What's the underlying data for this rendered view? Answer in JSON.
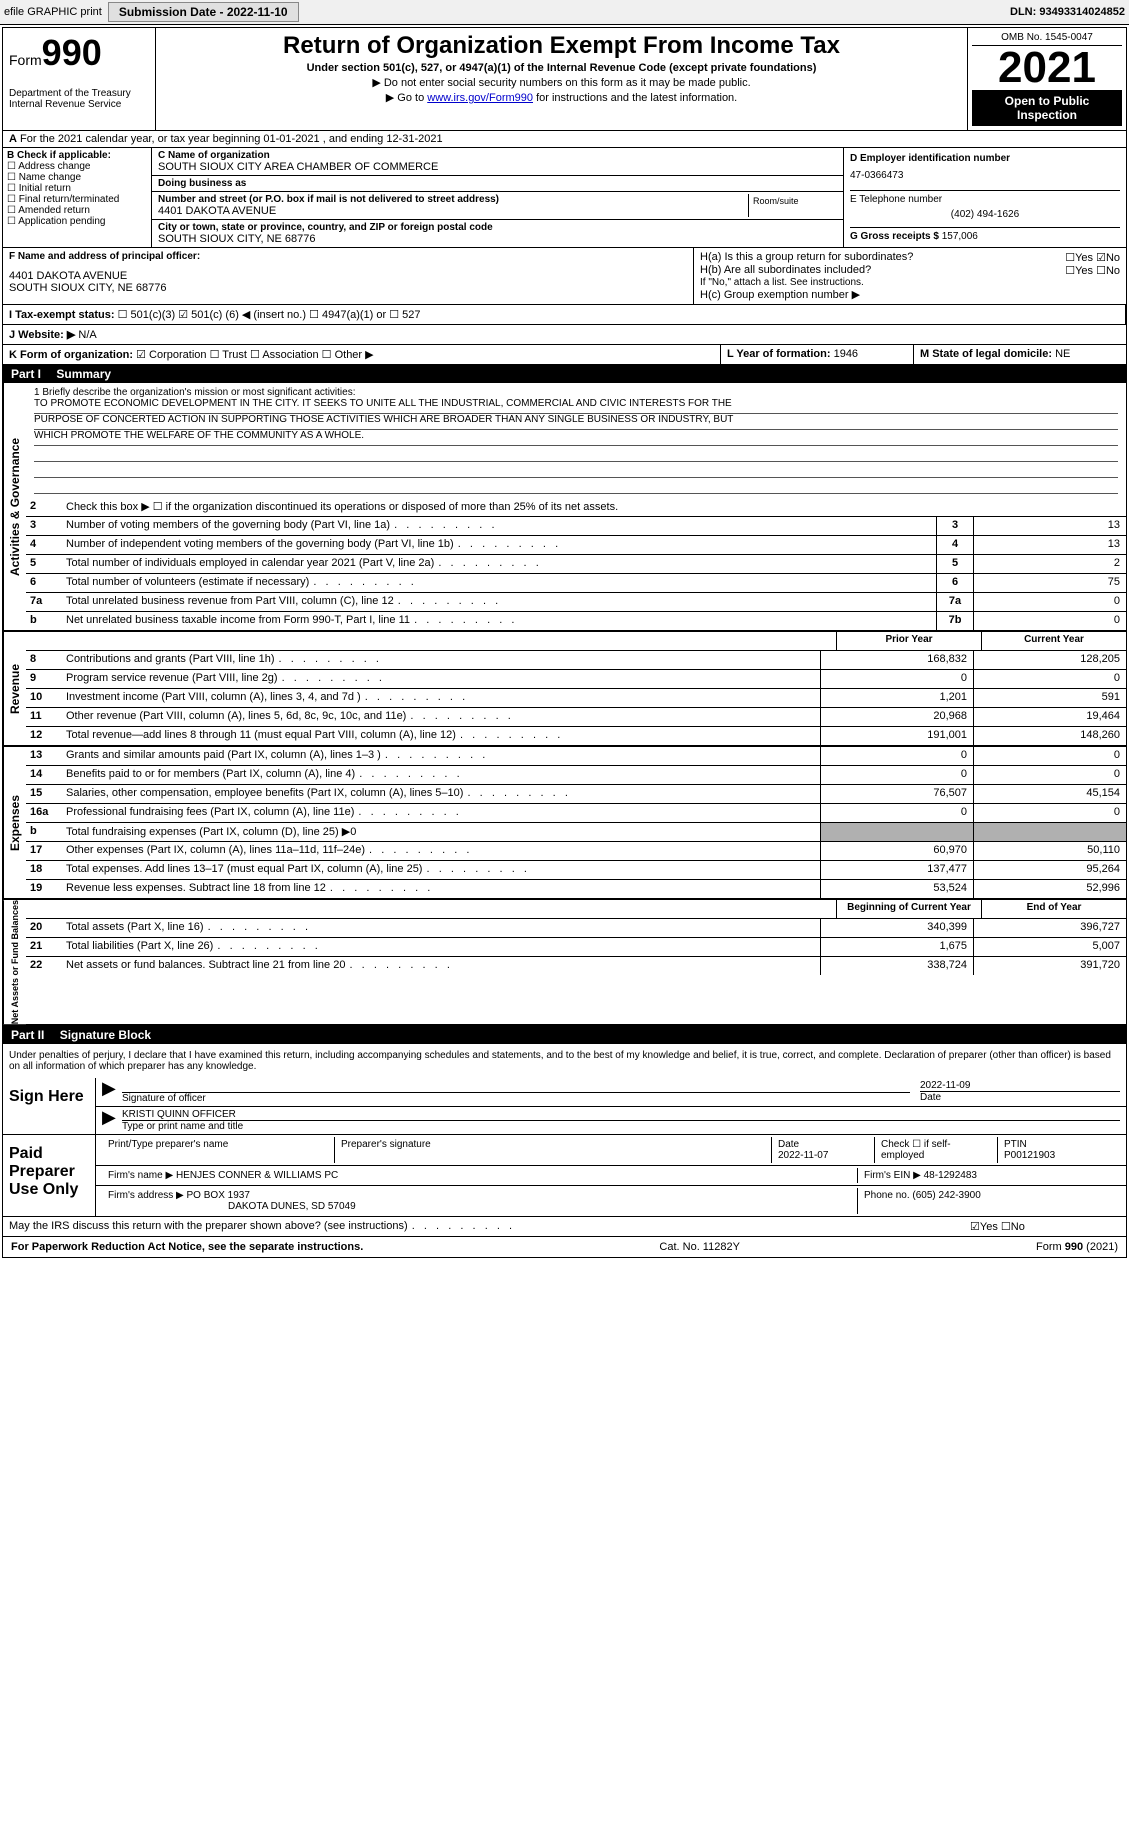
{
  "topbar": {
    "efile": "efile GRAPHIC print",
    "submission_label": "Submission Date - 2022-11-10",
    "dln_label": "DLN: 93493314024852"
  },
  "header": {
    "form_prefix": "Form",
    "form_num": "990",
    "title": "Return of Organization Exempt From Income Tax",
    "subtitle": "Under section 501(c), 527, or 4947(a)(1) of the Internal Revenue Code (except private foundations)",
    "note1": "▶ Do not enter social security numbers on this form as it may be made public.",
    "note2_pre": "▶ Go to ",
    "note2_link": "www.irs.gov/Form990",
    "note2_post": " for instructions and the latest information.",
    "dept": "Department of the Treasury\nInternal Revenue Service",
    "omb": "OMB No. 1545-0047",
    "year": "2021",
    "open_public": "Open to Public Inspection"
  },
  "a_line": "For the 2021 calendar year, or tax year beginning 01-01-2021    , and ending 12-31-2021",
  "col_b": {
    "label": "B Check if applicable:",
    "opts": [
      "Address change",
      "Name change",
      "Initial return",
      "Final return/terminated",
      "Amended return",
      "Application pending"
    ]
  },
  "col_c": {
    "name_label": "C Name of organization",
    "name": "SOUTH SIOUX CITY AREA CHAMBER OF COMMERCE",
    "dba_label": "Doing business as",
    "dba": "",
    "street_label": "Number and street (or P.O. box if mail is not delivered to street address)",
    "room_label": "Room/suite",
    "street": "4401 DAKOTA AVENUE",
    "city_label": "City or town, state or province, country, and ZIP or foreign postal code",
    "city": "SOUTH SIOUX CITY, NE  68776"
  },
  "col_d": {
    "ein_label": "D Employer identification number",
    "ein": "47-0366473",
    "phone_label": "E Telephone number",
    "phone": "(402) 494-1626",
    "gross_label": "G Gross receipts $",
    "gross": "157,006"
  },
  "row_f": {
    "label": "F  Name and address of principal officer:",
    "addr1": "4401 DAKOTA AVENUE",
    "addr2": "SOUTH SIOUX CITY, NE  68776"
  },
  "row_h": {
    "ha": "H(a)  Is this a group return for subordinates?",
    "hb": "H(b)  Are all subordinates included?",
    "hb_note": "If \"No,\" attach a list. See instructions.",
    "hc": "H(c)  Group exemption number ▶",
    "yes": "Yes",
    "no": "No"
  },
  "row_i": {
    "label": "I  Tax-exempt status:",
    "c3": "501(c)(3)",
    "c_pre": "501(c) (",
    "c_num": "6",
    "c_post": ") ◀ (insert no.)",
    "a1": "4947(a)(1) or",
    "527": "527"
  },
  "row_j": {
    "label": "J  Website: ▶",
    "val": "N/A"
  },
  "row_k": {
    "label": "K Form of organization:",
    "corp": "Corporation",
    "trust": "Trust",
    "assoc": "Association",
    "other": "Other ▶"
  },
  "row_l": {
    "label": "L Year of formation:",
    "val": "1946"
  },
  "row_m": {
    "label": "M State of legal domicile:",
    "val": "NE"
  },
  "part1": {
    "label": "Part I",
    "title": "Summary"
  },
  "mission": {
    "l1": "1  Briefly describe the organization's mission or most significant activities:",
    "text1": "TO PROMOTE ECONOMIC DEVELOPMENT IN THE CITY. IT SEEKS TO UNITE ALL THE INDUSTRIAL, COMMERCIAL AND CIVIC INTERESTS FOR THE",
    "text2": "PURPOSE OF CONCERTED ACTION IN SUPPORTING THOSE ACTIVITIES WHICH ARE BROADER THAN ANY SINGLE BUSINESS OR INDUSTRY, BUT",
    "text3": "WHICH PROMOTE THE WELFARE OF THE COMMUNITY AS A WHOLE."
  },
  "side_labels": {
    "gov": "Activities & Governance",
    "rev": "Revenue",
    "exp": "Expenses",
    "net": "Net Assets or Fund Balances"
  },
  "lines_gov": [
    {
      "n": "2",
      "d": "Check this box ▶ ☐  if the organization discontinued its operations or disposed of more than 25% of its net assets."
    },
    {
      "n": "3",
      "d": "Number of voting members of the governing body (Part VI, line 1a)",
      "b": "3",
      "v": "13"
    },
    {
      "n": "4",
      "d": "Number of independent voting members of the governing body (Part VI, line 1b)",
      "b": "4",
      "v": "13"
    },
    {
      "n": "5",
      "d": "Total number of individuals employed in calendar year 2021 (Part V, line 2a)",
      "b": "5",
      "v": "2"
    },
    {
      "n": "6",
      "d": "Total number of volunteers (estimate if necessary)",
      "b": "6",
      "v": "75"
    },
    {
      "n": "7a",
      "d": "Total unrelated business revenue from Part VIII, column (C), line 12",
      "b": "7a",
      "v": "0"
    },
    {
      "n": "b",
      "d": "Net unrelated business taxable income from Form 990-T, Part I, line 11",
      "b": "7b",
      "v": "0"
    }
  ],
  "col_heads": {
    "prior": "Prior Year",
    "current": "Current Year"
  },
  "lines_rev": [
    {
      "n": "8",
      "d": "Contributions and grants (Part VIII, line 1h)",
      "p": "168,832",
      "c": "128,205"
    },
    {
      "n": "9",
      "d": "Program service revenue (Part VIII, line 2g)",
      "p": "0",
      "c": "0"
    },
    {
      "n": "10",
      "d": "Investment income (Part VIII, column (A), lines 3, 4, and 7d )",
      "p": "1,201",
      "c": "591"
    },
    {
      "n": "11",
      "d": "Other revenue (Part VIII, column (A), lines 5, 6d, 8c, 9c, 10c, and 11e)",
      "p": "20,968",
      "c": "19,464"
    },
    {
      "n": "12",
      "d": "Total revenue—add lines 8 through 11 (must equal Part VIII, column (A), line 12)",
      "p": "191,001",
      "c": "148,260"
    }
  ],
  "lines_exp": [
    {
      "n": "13",
      "d": "Grants and similar amounts paid (Part IX, column (A), lines 1–3 )",
      "p": "0",
      "c": "0"
    },
    {
      "n": "14",
      "d": "Benefits paid to or for members (Part IX, column (A), line 4)",
      "p": "0",
      "c": "0"
    },
    {
      "n": "15",
      "d": "Salaries, other compensation, employee benefits (Part IX, column (A), lines 5–10)",
      "p": "76,507",
      "c": "45,154"
    },
    {
      "n": "16a",
      "d": "Professional fundraising fees (Part IX, column (A), line 11e)",
      "p": "0",
      "c": "0"
    },
    {
      "n": "b",
      "d": "Total fundraising expenses (Part IX, column (D), line 25) ▶0",
      "shaded": true
    },
    {
      "n": "17",
      "d": "Other expenses (Part IX, column (A), lines 11a–11d, 11f–24e)",
      "p": "60,970",
      "c": "50,110"
    },
    {
      "n": "18",
      "d": "Total expenses. Add lines 13–17 (must equal Part IX, column (A), line 25)",
      "p": "137,477",
      "c": "95,264"
    },
    {
      "n": "19",
      "d": "Revenue less expenses. Subtract line 18 from line 12",
      "p": "53,524",
      "c": "52,996"
    }
  ],
  "col_heads2": {
    "begin": "Beginning of Current Year",
    "end": "End of Year"
  },
  "lines_net": [
    {
      "n": "20",
      "d": "Total assets (Part X, line 16)",
      "p": "340,399",
      "c": "396,727"
    },
    {
      "n": "21",
      "d": "Total liabilities (Part X, line 26)",
      "p": "1,675",
      "c": "5,007"
    },
    {
      "n": "22",
      "d": "Net assets or fund balances. Subtract line 21 from line 20",
      "p": "338,724",
      "c": "391,720"
    }
  ],
  "part2": {
    "label": "Part II",
    "title": "Signature Block"
  },
  "sig_declare": "Under penalties of perjury, I declare that I have examined this return, including accompanying schedules and statements, and to the best of my knowledge and belief, it is true, correct, and complete. Declaration of preparer (other than officer) is based on all information of which preparer has any knowledge.",
  "sign_here": {
    "label": "Sign Here",
    "sig_label": "Signature of officer",
    "date_label": "Date",
    "date": "2022-11-09",
    "name": "KRISTI QUINN OFFICER",
    "name_label": "Type or print name and title"
  },
  "paid_preparer": {
    "label": "Paid Preparer Use Only",
    "print_name_label": "Print/Type preparer's name",
    "print_name": "",
    "sig_label": "Preparer's signature",
    "date_label": "Date",
    "date": "2022-11-07",
    "check_label": "Check ☐ if self-employed",
    "ptin_label": "PTIN",
    "ptin": "P00121903",
    "firm_name_label": "Firm's name    ▶",
    "firm_name": "HENJES CONNER & WILLIAMS PC",
    "firm_ein_label": "Firm's EIN ▶",
    "firm_ein": "48-1292483",
    "firm_addr_label": "Firm's address ▶",
    "firm_addr1": "PO BOX 1937",
    "firm_addr2": "DAKOTA DUNES, SD  57049",
    "phone_label": "Phone no.",
    "phone": "(605) 242-3900"
  },
  "discuss": {
    "q": "May the IRS discuss this return with the preparer shown above? (see instructions)",
    "yes": "Yes",
    "no": "No"
  },
  "footer": {
    "left": "For Paperwork Reduction Act Notice, see the separate instructions.",
    "mid": "Cat. No. 11282Y",
    "right_pre": "Form ",
    "right_bold": "990",
    "right_post": " (2021)"
  },
  "colors": {
    "shaded": "#b0b0b0",
    "link": "#0000cc"
  }
}
